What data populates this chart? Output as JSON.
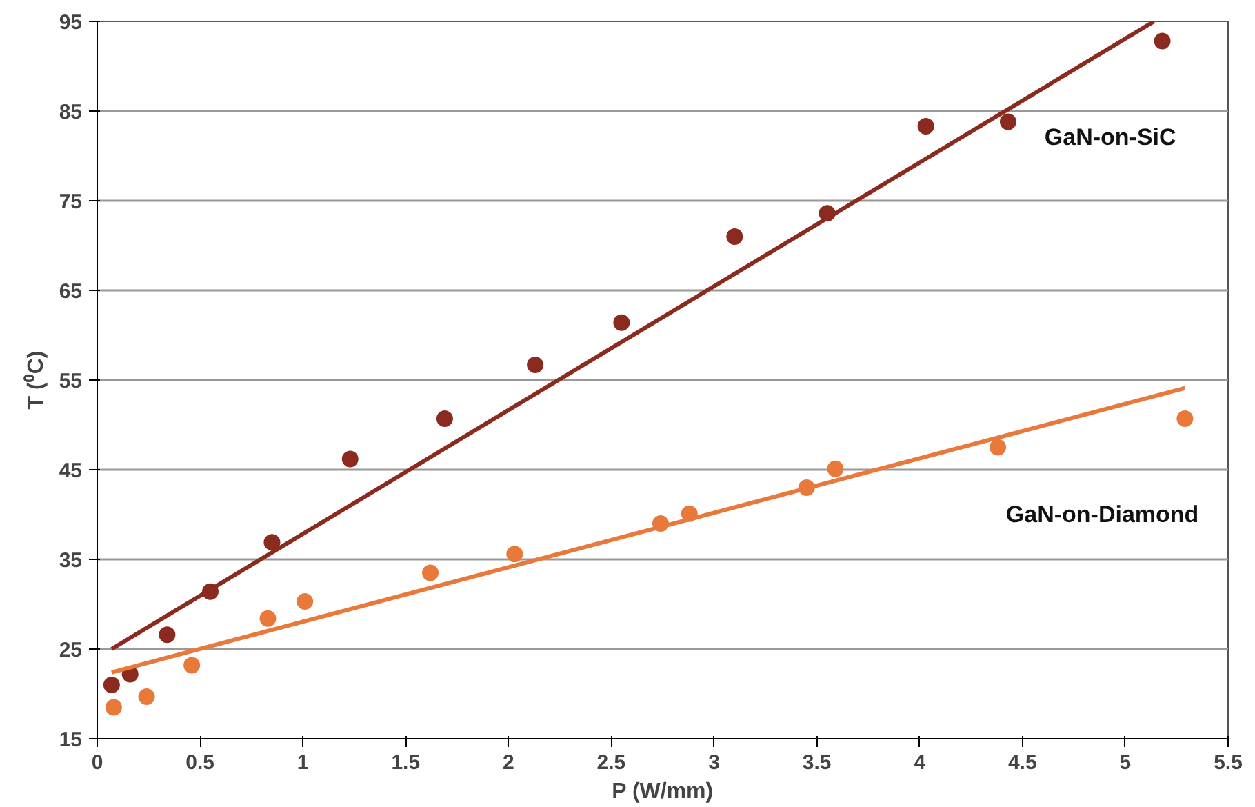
{
  "chart_data": {
    "type": "scatter",
    "xlabel": "P (W/mm)",
    "ylabel": "T (⁰C)",
    "xlim": [
      0,
      5.5
    ],
    "ylim": [
      15,
      95
    ],
    "xticks": [
      0,
      0.5,
      1,
      1.5,
      2,
      2.5,
      3,
      3.5,
      4,
      4.5,
      5,
      5.5
    ],
    "yticks": [
      15,
      25,
      35,
      45,
      55,
      65,
      75,
      85,
      95
    ],
    "grid": "y",
    "marker": "circle",
    "series": [
      {
        "name": "GaN-on-SiC",
        "color": "#8b2a1e",
        "x": [
          0.07,
          0.16,
          0.34,
          0.55,
          0.85,
          1.23,
          1.69,
          2.13,
          2.55,
          3.1,
          3.55,
          4.03,
          4.43,
          5.18
        ],
        "values": [
          21.0,
          22.2,
          26.6,
          31.4,
          36.9,
          46.2,
          50.7,
          56.7,
          61.4,
          71.0,
          73.6,
          83.3,
          83.8,
          92.8
        ]
      },
      {
        "type": "line",
        "marker": "none",
        "color": "#8b2a1e",
        "x": [
          0.07,
          5.14
        ],
        "values": [
          25,
          95
        ]
      },
      {
        "name": "GaN-on-Diamond",
        "color": "#e8793a",
        "x": [
          0.08,
          0.24,
          0.46,
          0.83,
          1.01,
          1.62,
          2.03,
          2.74,
          2.88,
          3.45,
          3.59,
          4.38,
          5.29
        ],
        "values": [
          18.5,
          19.7,
          23.2,
          28.4,
          30.3,
          33.5,
          35.6,
          39.0,
          40.1,
          43.0,
          45.1,
          47.5,
          50.7
        ]
      },
      {
        "type": "line",
        "marker": "none",
        "color": "#e8793a",
        "x": [
          0.07,
          5.29
        ],
        "values": [
          22.4,
          54.1
        ]
      }
    ]
  }
}
